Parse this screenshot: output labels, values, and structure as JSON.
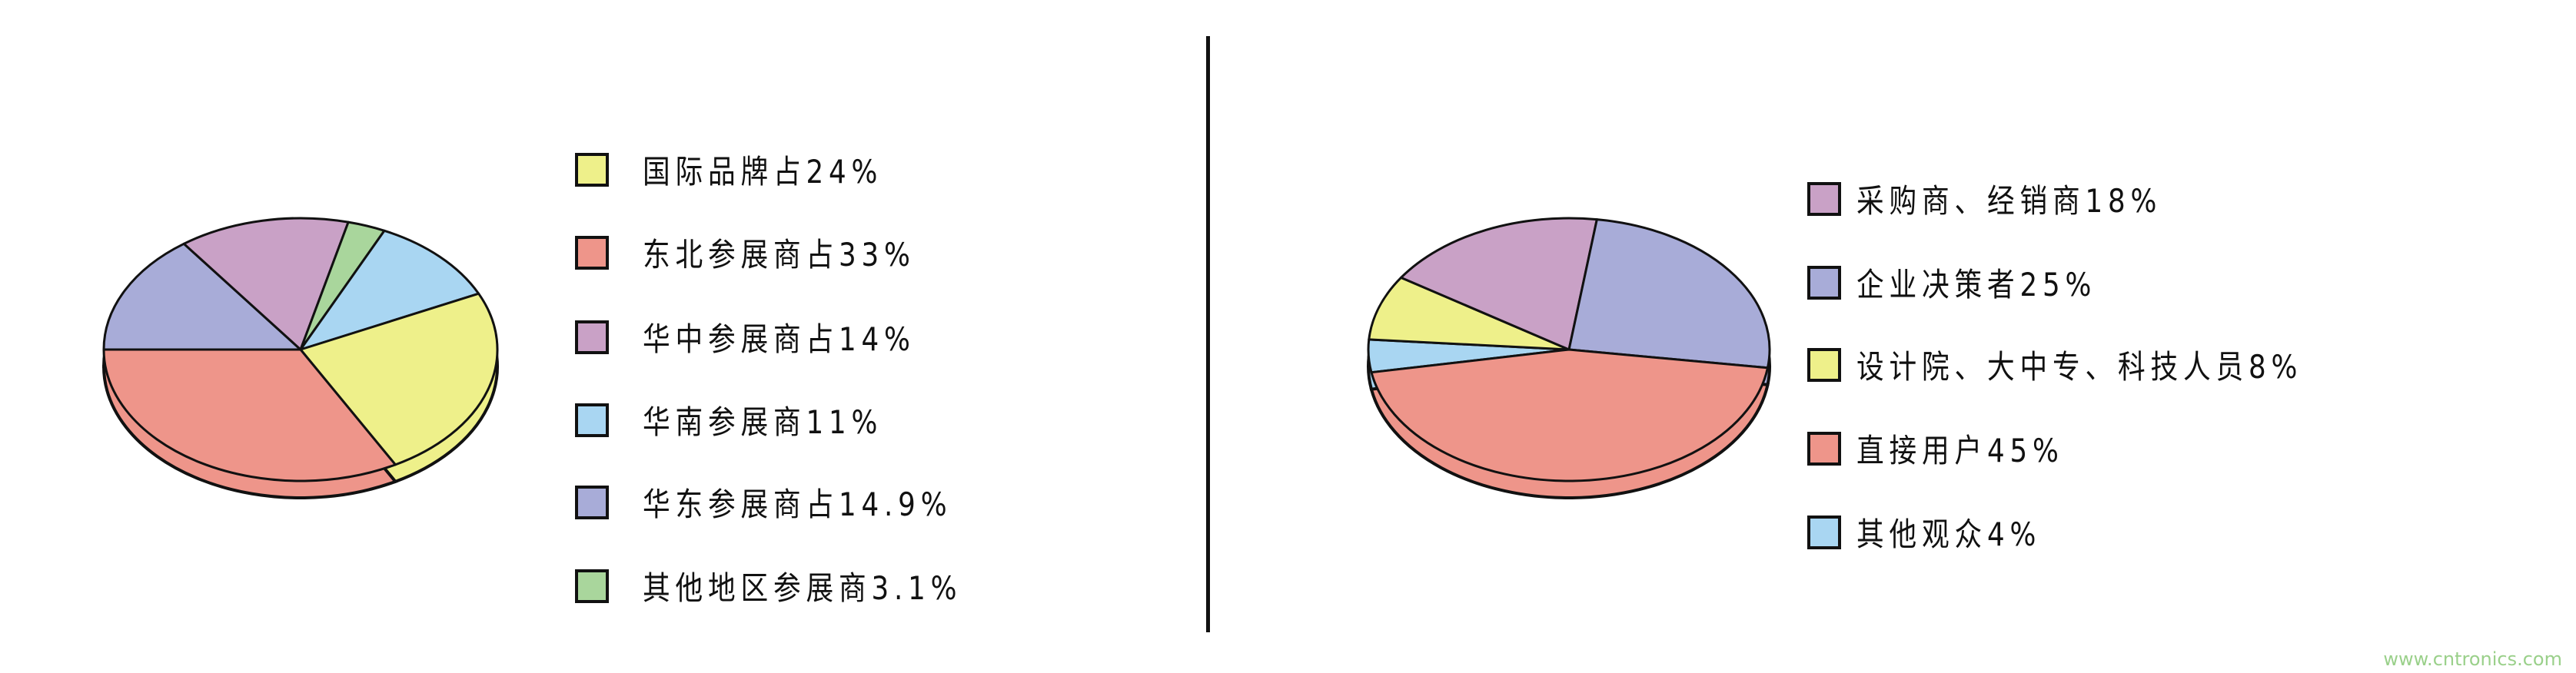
{
  "chart_data": [
    {
      "type": "pie",
      "title": "",
      "legend_position": "right",
      "slices": [
        {
          "label": "国际品牌占24%",
          "value": 24,
          "color": "#eef08a"
        },
        {
          "label": "东北参展商占33%",
          "value": 33,
          "color": "#ee958a"
        },
        {
          "label": "华中参展商占14%",
          "value": 14,
          "color": "#c9a1c6"
        },
        {
          "label": "华南参展商11%",
          "value": 11,
          "color": "#a9d6f2"
        },
        {
          "label": "华东参展商占14.9%",
          "value": 14.9,
          "color": "#a8acd8"
        },
        {
          "label": "其他地区参展商3.1%",
          "value": 3.1,
          "color": "#a9d69c"
        }
      ]
    },
    {
      "type": "pie",
      "title": "",
      "legend_position": "right",
      "slices": [
        {
          "label": "采购商、经销商18%",
          "value": 18,
          "color": "#c9a1c6"
        },
        {
          "label": "企业决策者25%",
          "value": 25,
          "color": "#a8acd8"
        },
        {
          "label": "设计院、大中专、科技人员8%",
          "value": 8,
          "color": "#eef08a"
        },
        {
          "label": "直接用户45%",
          "value": 45,
          "color": "#ee958a"
        },
        {
          "label": "其他观众4%",
          "value": 4,
          "color": "#a9d6f2"
        }
      ]
    }
  ],
  "watermark": "www.cntronics.com"
}
